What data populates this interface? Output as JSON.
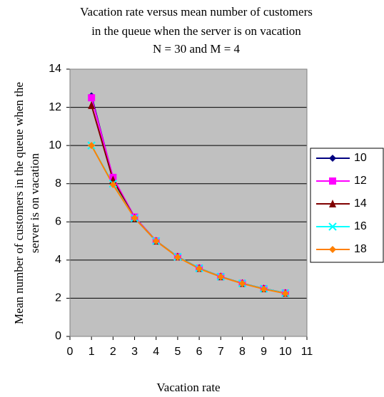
{
  "chart_data": {
    "type": "line",
    "title": [
      "Vacation rate versus mean number of customers",
      "in the queue when the server is  on vacation",
      "N = 30 and M = 4"
    ],
    "xlabel": "Vacation rate",
    "ylabel": [
      "Mean number of customers in the queue when the",
      "server is on vacation"
    ],
    "x": [
      1,
      2,
      3,
      4,
      5,
      6,
      7,
      8,
      9,
      10
    ],
    "series": [
      {
        "name": "10",
        "color": "#000080",
        "marker": "diamond",
        "values": [
          12.6,
          8.3,
          6.25,
          5.0,
          4.17,
          3.57,
          3.13,
          2.78,
          2.5,
          2.27
        ]
      },
      {
        "name": "12",
        "color": "#ff00ff",
        "marker": "square",
        "values": [
          12.5,
          8.33,
          6.25,
          5.0,
          4.17,
          3.57,
          3.13,
          2.78,
          2.5,
          2.27
        ]
      },
      {
        "name": "14",
        "color": "#800000",
        "marker": "triangle",
        "values": [
          12.1,
          8.2,
          6.2,
          5.0,
          4.17,
          3.57,
          3.13,
          2.78,
          2.5,
          2.27
        ]
      },
      {
        "name": "16",
        "color": "#00ffff",
        "marker": "x",
        "values": [
          10.0,
          8.0,
          6.2,
          5.0,
          4.17,
          3.57,
          3.13,
          2.78,
          2.5,
          2.27
        ]
      },
      {
        "name": "18",
        "color": "#ff8000",
        "marker": "diamond",
        "values": [
          10.0,
          7.95,
          6.2,
          5.0,
          4.15,
          3.55,
          3.12,
          2.77,
          2.48,
          2.25
        ]
      }
    ],
    "xlim": [
      0,
      11
    ],
    "xticks": [
      0,
      1,
      2,
      3,
      4,
      5,
      6,
      7,
      8,
      9,
      10,
      11
    ],
    "ylim": [
      0,
      14
    ],
    "yticks": [
      0,
      2,
      4,
      6,
      8,
      10,
      12,
      14
    ],
    "grid": true,
    "legend": "right"
  }
}
